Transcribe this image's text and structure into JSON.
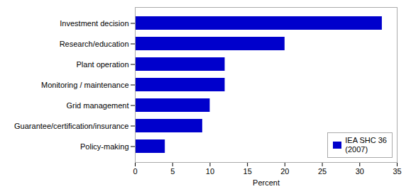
{
  "chart_data": {
    "type": "bar",
    "orientation": "horizontal",
    "categories": [
      "Policy-making",
      "Guarantee/certification/insurance",
      "Grid management",
      "Monitoring / maintenance",
      "Plant operation",
      "Research/education",
      "Investment decision"
    ],
    "series": [
      {
        "name": "IEA SHC 36\n(2007)",
        "color": "#0000cc",
        "values": [
          4,
          9,
          10,
          12,
          12,
          20,
          33
        ]
      }
    ],
    "xlabel": "Percent",
    "xlim": [
      0,
      35
    ],
    "xticks": [
      0,
      5,
      10,
      15,
      20,
      25,
      30,
      35
    ],
    "grid": false,
    "legend": "lower right"
  }
}
